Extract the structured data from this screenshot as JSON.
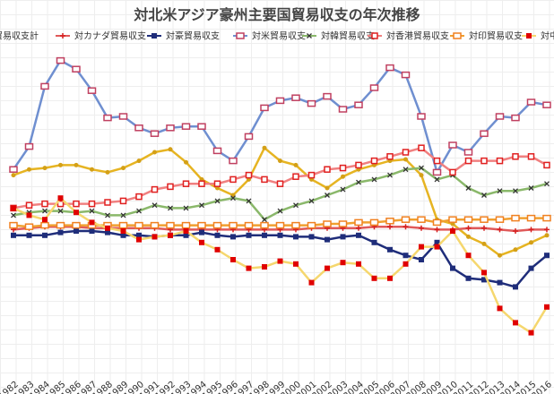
{
  "chart_data": {
    "type": "line",
    "title": "対北米アジア豪州主要国貿易収支の年次推移",
    "categories": [
      "1982",
      "1983",
      "1984",
      "1985",
      "1986",
      "1987",
      "1988",
      "1989",
      "1990",
      "1991",
      "1992",
      "1993",
      "1994",
      "1995",
      "1996",
      "1997",
      "1998",
      "1999",
      "2000",
      "2001",
      "2002",
      "2003",
      "2004",
      "2005",
      "2006",
      "2007",
      "2008",
      "2009",
      "2010",
      "2011",
      "2012",
      "2013",
      "2014",
      "2015",
      "2016"
    ],
    "ylim": [
      -10,
      13.5
    ],
    "series": [
      {
        "name": "州貿易収支計",
        "color": "#e6b422",
        "marker_color": "#d4a017",
        "marker": "circle",
        "values": [
          3.9,
          4.3,
          4.4,
          4.6,
          4.6,
          4.3,
          4.1,
          4.4,
          4.9,
          5.5,
          5.7,
          4.8,
          3.6,
          3.0,
          2.5,
          3.6,
          5.8,
          4.9,
          4.6,
          3.6,
          3.0,
          3.8,
          4.3,
          4.6,
          4.9,
          5.0,
          3.9,
          0.8,
          0.5,
          -0.4,
          -0.9,
          -1.7,
          -1.3,
          -0.8,
          -0.3
        ]
      },
      {
        "name": "対カナダ貿易収支",
        "color": "#e05a5a",
        "marker_color": "#d62020",
        "marker": "plus",
        "values": [
          0.1,
          0.2,
          0.3,
          0.3,
          0.3,
          0.2,
          0.2,
          0.2,
          0.2,
          0.2,
          0.1,
          0.1,
          0.1,
          0.1,
          0.1,
          0.1,
          0.1,
          0.1,
          0.1,
          0.2,
          0.2,
          0.2,
          0.2,
          0.3,
          0.3,
          0.3,
          0.2,
          0.1,
          0.1,
          0.2,
          0.2,
          0.1,
          0,
          0.1,
          0.1
        ]
      },
      {
        "name": "対豪貿易収支",
        "color": "#1f2d7a",
        "marker_color": "#1f2d7a",
        "marker": "square",
        "values": [
          -0.3,
          -0.3,
          -0.3,
          -0.1,
          0,
          0,
          -0.1,
          -0.3,
          -0.3,
          -0.4,
          -0.3,
          -0.3,
          -0.1,
          -0.3,
          -0.4,
          -0.3,
          -0.3,
          -0.3,
          -0.4,
          -0.4,
          -0.6,
          -0.4,
          -0.3,
          -0.8,
          -1.3,
          -1.7,
          -2.0,
          -0.8,
          -2.6,
          -3.3,
          -3.4,
          -3.6,
          -3.9,
          -2.6,
          -1.7
        ]
      },
      {
        "name": "対米貿易収支",
        "color": "#6f8fd0",
        "marker_color": "#c04060",
        "marker": "flag",
        "values": [
          4.3,
          5.9,
          10.1,
          11.9,
          11.3,
          9.8,
          7.9,
          8.0,
          7.2,
          6.8,
          7.2,
          7.3,
          7.3,
          5.6,
          4.9,
          6.6,
          8.6,
          9.1,
          9.3,
          8.9,
          9.4,
          8.5,
          8.8,
          10.0,
          11.4,
          10.9,
          8.0,
          4.1,
          6.0,
          5.5,
          6.8,
          8.0,
          7.9,
          9.0,
          8.8
        ]
      },
      {
        "name": "対韓貿易収支",
        "color": "#8ab86a",
        "marker_color": "#333333",
        "marker": "cross",
        "values": [
          1.1,
          1.3,
          1.4,
          1.4,
          1.3,
          1.4,
          1.1,
          1.1,
          1.4,
          1.8,
          1.6,
          1.6,
          1.8,
          2.1,
          2.3,
          2.1,
          0.8,
          1.4,
          1.8,
          2.1,
          2.5,
          2.9,
          3.4,
          3.6,
          3.9,
          4.3,
          4.4,
          3.6,
          3.9,
          3.0,
          2.5,
          2.8,
          2.8,
          3.0,
          3.3
        ]
      },
      {
        "name": "対香港貿易収支",
        "color": "#f08080",
        "marker_color": "#e02020",
        "marker": "hollow",
        "values": [
          1.6,
          1.8,
          1.9,
          1.9,
          1.9,
          1.9,
          2.0,
          2.1,
          2.4,
          2.9,
          3.1,
          3.3,
          3.3,
          3.3,
          3.6,
          3.9,
          3.6,
          3.3,
          3.8,
          3.9,
          4.3,
          4.4,
          4.6,
          4.9,
          5.2,
          5.5,
          5.8,
          4.9,
          4.1,
          4.9,
          4.9,
          4.9,
          5.2,
          5.2,
          4.6
        ]
      },
      {
        "name": "対印貿易収支",
        "color": "#f0a030",
        "marker_color": "#f08020",
        "marker": "flag",
        "values": [
          0.4,
          0.3,
          0.4,
          0.4,
          0.4,
          0.4,
          0.4,
          0.4,
          0.4,
          0.4,
          0.4,
          0.4,
          0.4,
          0.4,
          0.4,
          0.4,
          0.4,
          0.4,
          0.4,
          0.4,
          0.5,
          0.5,
          0.6,
          0.6,
          0.7,
          0.8,
          0.8,
          0.6,
          0.8,
          0.8,
          0.8,
          0.8,
          0.9,
          0.9,
          0.9
        ]
      },
      {
        "name": "対中",
        "color": "#f5d76e",
        "marker_color": "#e00000",
        "marker": "square",
        "values": [
          1.6,
          1.1,
          0.8,
          2.3,
          1.3,
          0.6,
          0.2,
          0,
          -0.6,
          -0.4,
          -0.3,
          0,
          -0.8,
          -1.3,
          -2,
          -2.6,
          -2.5,
          -2.1,
          -2.3,
          -3.6,
          -2.6,
          -2.2,
          -2.3,
          -3.3,
          -3.3,
          -2.3,
          -1.1,
          -1.1,
          0,
          -1.7,
          -2.9,
          -5.4,
          -6.4,
          -7.1,
          -5.3
        ]
      }
    ]
  }
}
